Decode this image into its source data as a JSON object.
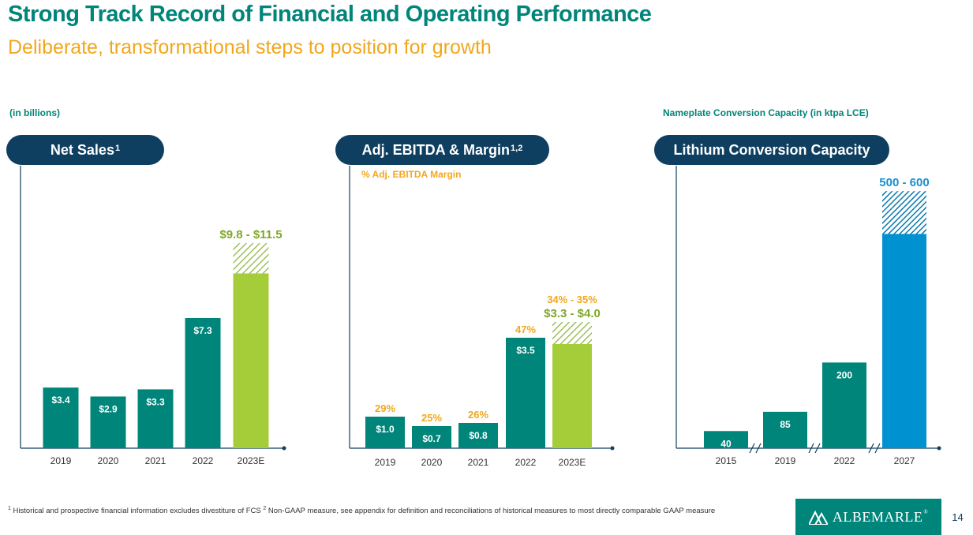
{
  "header": {
    "title": "Strong Track Record of Financial and Operating Performance",
    "subtitle": "Deliberate, transformational steps to position for growth"
  },
  "colors": {
    "teal": "#00857A",
    "green": "#A5CD39",
    "orange": "#F2A71B",
    "navy": "#0F3F60",
    "blue": "#0091D1",
    "hatch_green": "#8DB33A",
    "hatch_blue": "#0A7AAE"
  },
  "left_unit_label": "(in billions)",
  "right_unit_label": "Nameplate Conversion Capacity (in ktpa LCE)",
  "margin_caption": "% Adj. EBITDA Margin",
  "pills": {
    "net_sales": {
      "text": "Net Sales",
      "sup": "1"
    },
    "ebitda": {
      "text": "Adj. EBITDA & Margin",
      "sup": "1,2"
    },
    "lithium": {
      "text": "Lithium Conversion Capacity",
      "sup": ""
    }
  },
  "chart_data": [
    {
      "type": "bar",
      "title": "Net Sales",
      "unit": "(in billions)",
      "categories": [
        "2019",
        "2020",
        "2021",
        "2022",
        "2023E"
      ],
      "values": [
        3.4,
        2.9,
        3.3,
        7.3,
        9.8
      ],
      "range_high": [
        null,
        null,
        null,
        null,
        11.5
      ],
      "data_labels": [
        "$3.4",
        "$2.9",
        "$3.3",
        "$7.3",
        "$9.8 - $11.5"
      ],
      "ylim": [
        0,
        12.5
      ]
    },
    {
      "type": "bar",
      "title": "Adj. EBITDA & Margin",
      "unit": "(in billions)",
      "categories": [
        "2019",
        "2020",
        "2021",
        "2022",
        "2023E"
      ],
      "values": [
        1.0,
        0.7,
        0.8,
        3.5,
        3.3
      ],
      "range_high": [
        null,
        null,
        null,
        null,
        4.0
      ],
      "data_labels": [
        "$1.0",
        "$0.7",
        "$0.8",
        "$3.5",
        "$3.3 - $4.0"
      ],
      "margins": [
        "29%",
        "25%",
        "26%",
        "47%",
        "34% - 35%"
      ],
      "ylim": [
        0,
        12.5
      ]
    },
    {
      "type": "bar",
      "title": "Lithium Conversion Capacity",
      "unit": "Nameplate Conversion Capacity (in ktpa LCE)",
      "categories": [
        "2015",
        "2019",
        "2022",
        "2027"
      ],
      "values": [
        40,
        85,
        200,
        500
      ],
      "range_high": [
        null,
        null,
        null,
        600
      ],
      "data_labels": [
        "40",
        "85",
        "200",
        "500 - 600"
      ],
      "ylim": [
        0,
        640
      ]
    }
  ],
  "footnote": {
    "sup1": "1",
    "text1": " Historical and prospective financial information excludes divestiture of FCS ",
    "sup2": "2",
    "text2": " Non-GAAP measure, see appendix for definition and reconciliations of historical measures to most directly comparable GAAP measure"
  },
  "logo_text": "ALBEMARLE",
  "logo_tm": "®",
  "page_number": "14"
}
